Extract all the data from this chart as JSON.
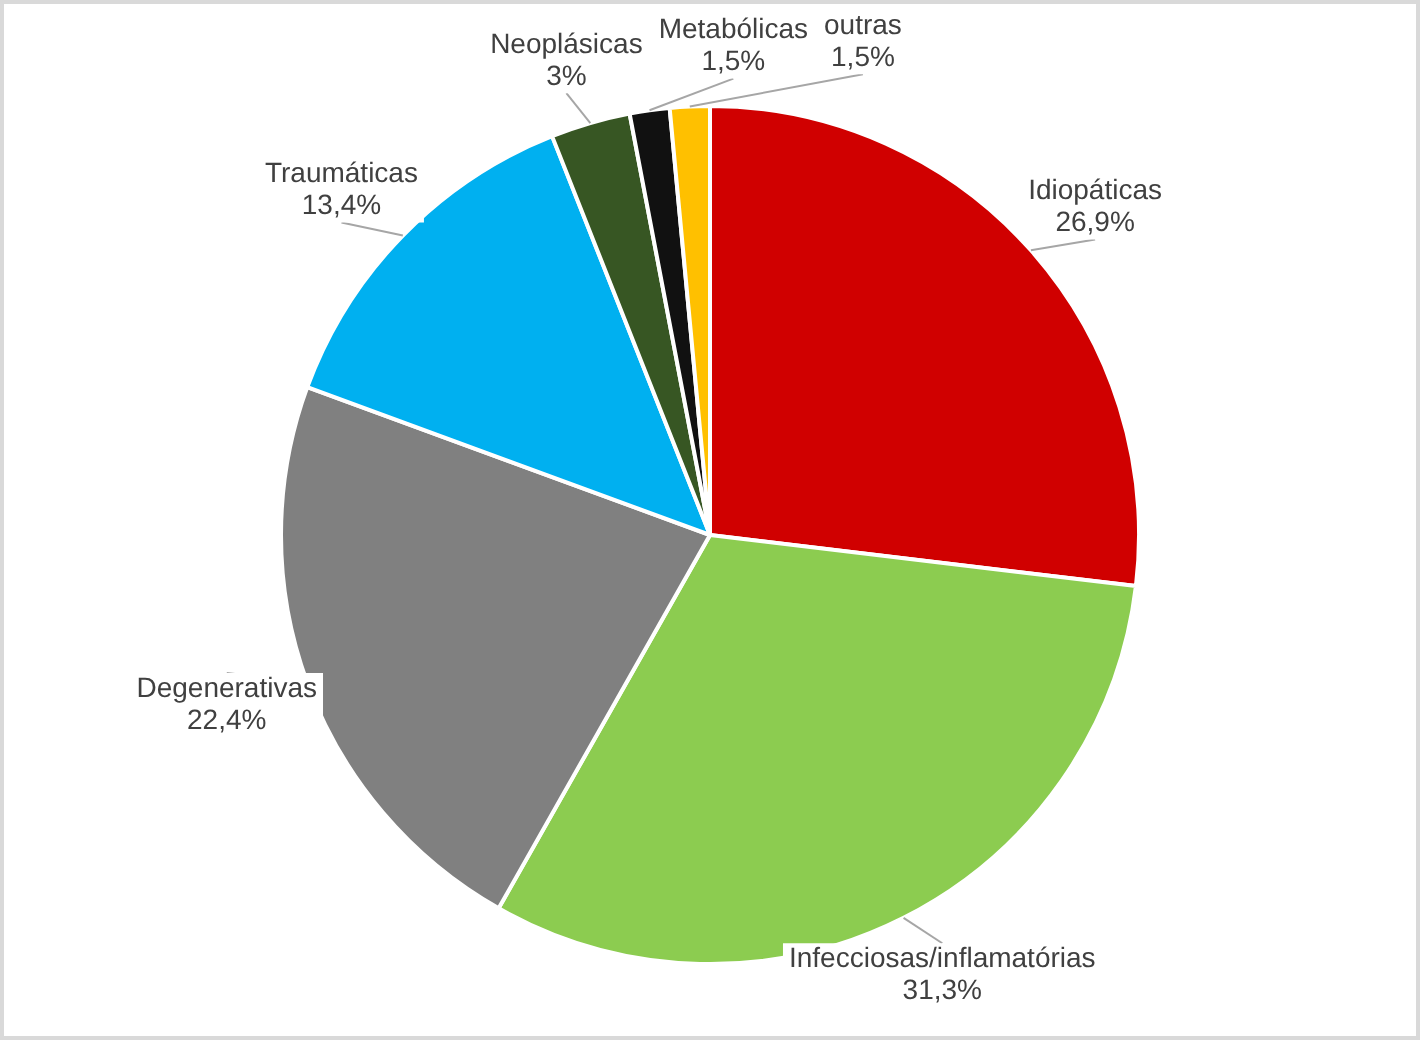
{
  "chart_data": {
    "type": "pie",
    "categories": [
      "Idiopáticas",
      "Infecciosas/inflamatórias",
      "Degenerativas",
      "Traumáticas",
      "Neoplásicas",
      "Metabólicas",
      "outras"
    ],
    "values": [
      26.9,
      31.3,
      22.4,
      13.4,
      3,
      1.5,
      1.5
    ],
    "value_labels": [
      "26,9%",
      "31,3%",
      "22,4%",
      "13,4%",
      "3%",
      "1,5%",
      "1,5%"
    ],
    "colors": [
      "#d00000",
      "#8ccc50",
      "#808080",
      "#00b0f0",
      "#375623",
      "#111111",
      "#ffc000"
    ],
    "legend": false
  }
}
